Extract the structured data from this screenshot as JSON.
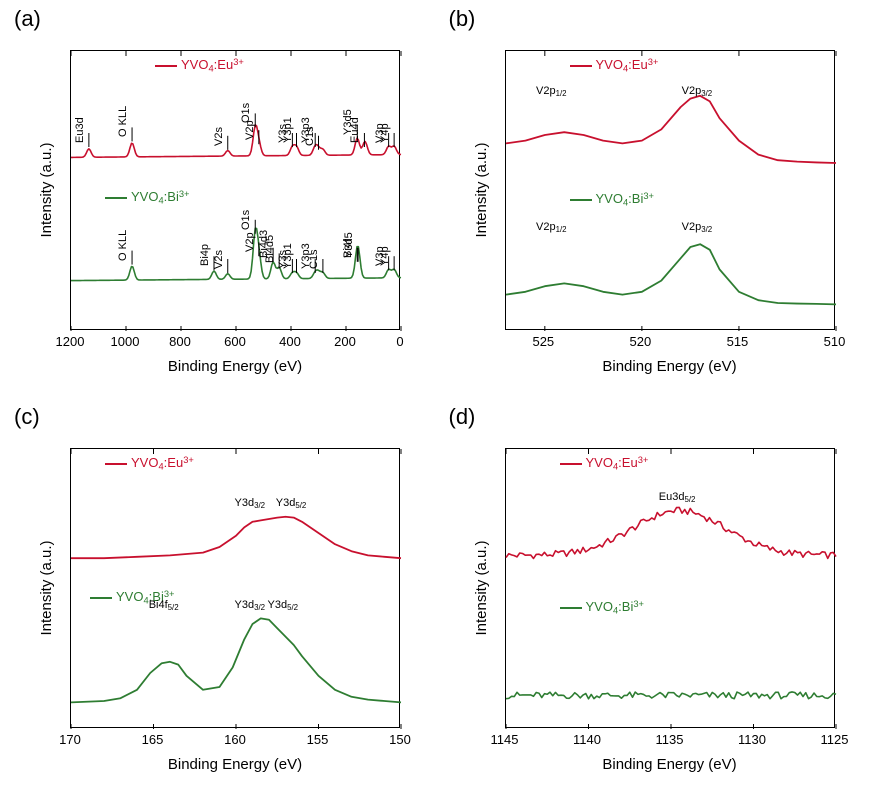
{
  "axes_common": {
    "xlabel": "Binding Energy (eV)",
    "ylabel": "Intensity (a.u.)",
    "series_red_html": "YVO<sub>4</sub>:Eu<sup>3+</sup>",
    "series_green_html": "YVO<sub>4</sub>:Bi<sup>3+</sup>",
    "color_red": "#c8102e",
    "color_green": "#2e7d32",
    "axis_color": "#000000",
    "font_family": "Arial",
    "label_fontsize": 15,
    "tick_fontsize": 13,
    "legend_fontsize": 13
  },
  "panela": {
    "label": "(a)",
    "xlim": [
      1200,
      0
    ],
    "xticks": [
      1200,
      1000,
      800,
      600,
      400,
      200,
      0
    ],
    "series": {
      "red": {
        "baseline_y": 0.62,
        "peaks_x": [
          1135,
          978,
          630,
          530,
          517,
          395,
          380,
          312,
          300,
          284,
          159,
          133,
          128,
          45,
          25
        ],
        "peaks_dy": [
          0.03,
          0.05,
          0.02,
          0.1,
          0.04,
          0.03,
          0.03,
          0.03,
          0.02,
          0.02,
          0.06,
          0.03,
          0.02,
          0.03,
          0.03
        ],
        "labels": [
          "Eu3d",
          "O KLL",
          "V2s",
          "O1s",
          "V2p",
          "Y3s",
          "Y3p1",
          "Y3p3",
          "C1s",
          "",
          "Y3d5",
          "Eu4d",
          "",
          "V3p",
          "Y4p"
        ]
      },
      "green": {
        "baseline_y": 0.18,
        "peaks_x": [
          978,
          680,
          630,
          530,
          517,
          465,
          443,
          395,
          380,
          312,
          300,
          284,
          159,
          156,
          45,
          25
        ],
        "peaks_dy": [
          0.05,
          0.03,
          0.02,
          0.16,
          0.08,
          0.06,
          0.04,
          0.02,
          0.02,
          0.02,
          0.02,
          0.02,
          0.06,
          0.06,
          0.03,
          0.03
        ],
        "labels": [
          "O KLL",
          "Bi4p",
          "V2s",
          "O1s",
          "V2p",
          "Bi4d3",
          "Bi4d5",
          "Y3s",
          "Y3p1",
          "Y3p3",
          "",
          "C1s",
          "Bi4f",
          "Y3d5",
          "V3p",
          "Y4p"
        ]
      }
    }
  },
  "panelb": {
    "label": "(b)",
    "xlim": [
      527,
      510
    ],
    "xticks": [
      525,
      520,
      515,
      510
    ],
    "peak_labels_red": [
      {
        "x": 524.5,
        "txt": "V2p<sub>1/2</sub>"
      },
      {
        "x": 517.0,
        "txt": "V2p<sub>3/2</sub>"
      }
    ],
    "peak_labels_green": [
      {
        "x": 524.5,
        "txt": "V2p<sub>1/2</sub>"
      },
      {
        "x": 517.0,
        "txt": "V2p<sub>3/2</sub>"
      }
    ],
    "red": {
      "x": [
        527,
        526,
        525,
        524,
        523,
        522,
        521,
        520,
        519,
        518,
        517.5,
        517,
        516.5,
        516,
        515,
        514,
        513,
        512,
        511,
        510
      ],
      "y": [
        0.67,
        0.68,
        0.7,
        0.71,
        0.7,
        0.68,
        0.67,
        0.68,
        0.72,
        0.8,
        0.83,
        0.84,
        0.82,
        0.76,
        0.68,
        0.63,
        0.61,
        0.605,
        0.602,
        0.6
      ]
    },
    "green": {
      "x": [
        527,
        526,
        525,
        524,
        523,
        522,
        521,
        520,
        519,
        518,
        517.5,
        517,
        516.5,
        516,
        515,
        514,
        513,
        512,
        511,
        510
      ],
      "y": [
        0.13,
        0.14,
        0.16,
        0.17,
        0.16,
        0.14,
        0.13,
        0.14,
        0.18,
        0.26,
        0.3,
        0.31,
        0.29,
        0.22,
        0.14,
        0.11,
        0.1,
        0.098,
        0.097,
        0.095
      ]
    }
  },
  "panelc": {
    "label": "(c)",
    "xlim": [
      170,
      150
    ],
    "xticks": [
      170,
      165,
      160,
      155,
      150
    ],
    "peak_labels_red": [
      {
        "x": 159.0,
        "txt": "Y3d<sub>3/2</sub>"
      },
      {
        "x": 156.5,
        "txt": "Y3d<sub>5/2</sub>"
      }
    ],
    "peak_labels_green": [
      {
        "x": 164.2,
        "txt": "Bi4f<sub>5/2</sub>"
      },
      {
        "x": 159.0,
        "txt": "Y3d<sub>3/2</sub>"
      },
      {
        "x": 157.0,
        "txt": "Y3d<sub>5/2</sub>"
      }
    ],
    "red": {
      "x": [
        170,
        168,
        166,
        164,
        162,
        161,
        160,
        159.5,
        159,
        158.5,
        158,
        157.5,
        157,
        156.5,
        156,
        155,
        154,
        153,
        152,
        151,
        150
      ],
      "y": [
        0.61,
        0.61,
        0.615,
        0.62,
        0.63,
        0.65,
        0.69,
        0.72,
        0.74,
        0.745,
        0.75,
        0.755,
        0.758,
        0.755,
        0.74,
        0.7,
        0.66,
        0.635,
        0.62,
        0.615,
        0.61
      ]
    },
    "green": {
      "x": [
        170,
        168,
        167,
        166,
        165.2,
        164.5,
        164,
        163.5,
        163,
        162,
        161,
        160.2,
        159.5,
        159,
        158.5,
        158,
        157.5,
        157,
        156.5,
        156,
        155,
        154,
        153,
        152,
        151,
        150
      ],
      "y": [
        0.095,
        0.1,
        0.11,
        0.14,
        0.2,
        0.235,
        0.24,
        0.23,
        0.19,
        0.14,
        0.15,
        0.22,
        0.32,
        0.375,
        0.395,
        0.39,
        0.36,
        0.33,
        0.3,
        0.26,
        0.19,
        0.14,
        0.115,
        0.105,
        0.1,
        0.095
      ]
    }
  },
  "paneld": {
    "label": "(d)",
    "xlim": [
      1145,
      1125
    ],
    "xticks": [
      1145,
      1140,
      1135,
      1130,
      1125
    ],
    "peak_labels_red": [
      {
        "x": 1134.5,
        "txt": "Eu3d<sub>5/2</sub>"
      }
    ],
    "peak_labels_green": [],
    "red_base": 0.62,
    "red_peak_x": 1134.5,
    "red_peak_h": 0.16,
    "red_halfw": 2.8,
    "red_noise": 0.025,
    "green_base": 0.12,
    "green_noise": 0.025
  }
}
